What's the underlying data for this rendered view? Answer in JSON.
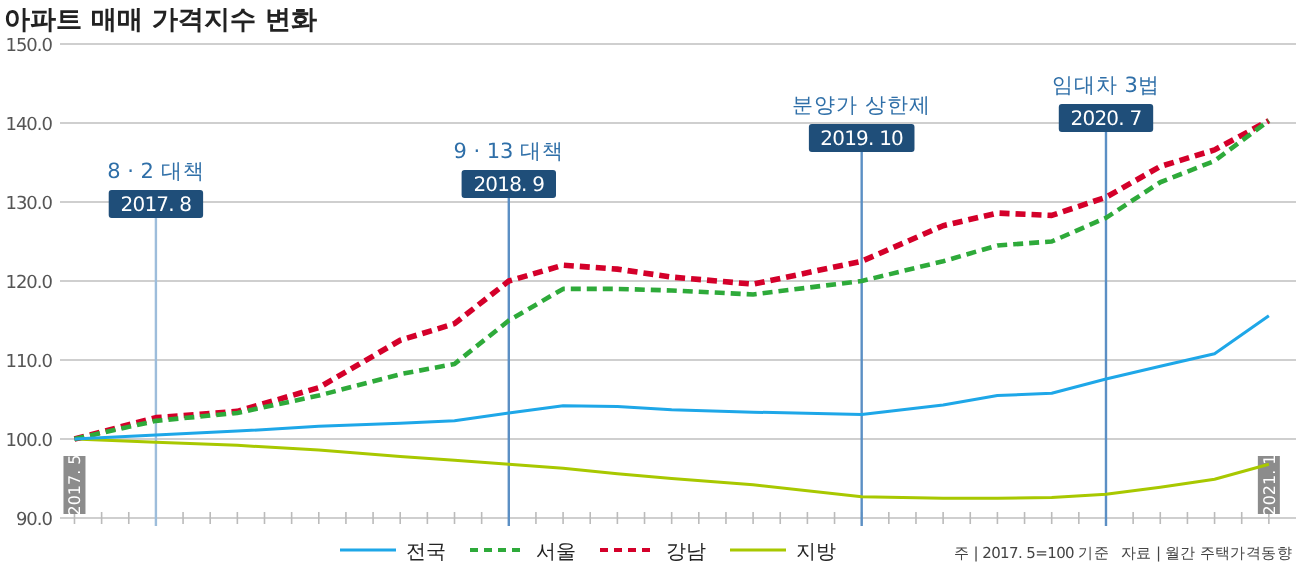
{
  "chart_data": {
    "type": "line",
    "title": "아파트 매매 가격지수 변화",
    "x": [
      "2017-05",
      "2017-08",
      "2017-11",
      "2018-02",
      "2018-05",
      "2018-07",
      "2018-09",
      "2018-11",
      "2019-01",
      "2019-03",
      "2019-06",
      "2019-10",
      "2020-01",
      "2020-03",
      "2020-05",
      "2020-07",
      "2020-09",
      "2020-11",
      "2021-01"
    ],
    "series": [
      {
        "name": "전국",
        "color": "#1ea7e8",
        "line_style": "solid",
        "values": [
          100,
          100.5,
          101.0,
          101.6,
          102.0,
          102.3,
          103.3,
          104.2,
          104.1,
          103.7,
          103.4,
          103.1,
          104.3,
          105.5,
          105.8,
          107.6,
          109.2,
          110.8,
          115.6
        ]
      },
      {
        "name": "서울",
        "color": "#2eaa3a",
        "line_style": "dashed",
        "values": [
          100,
          102.3,
          103.3,
          105.5,
          108.2,
          109.5,
          115,
          119,
          119,
          118.8,
          118.3,
          120,
          122.5,
          124.5,
          125,
          128,
          132.5,
          135.2,
          140.3
        ]
      },
      {
        "name": "강남",
        "color": "#d4002a",
        "line_style": "dashed",
        "values": [
          100,
          102.7,
          103.5,
          106.5,
          112.5,
          114.6,
          120,
          122,
          121.5,
          120.5,
          119.6,
          122.5,
          127,
          128.6,
          128.3,
          130.6,
          134.5,
          136.6,
          140.3
        ]
      },
      {
        "name": "지방",
        "color": "#a8c800",
        "line_style": "solid",
        "values": [
          100,
          99.6,
          99.2,
          98.6,
          97.8,
          97.3,
          96.8,
          96.3,
          95.6,
          95.0,
          94.2,
          92.7,
          92.5,
          92.5,
          92.6,
          93.0,
          93.9,
          94.9,
          96.8
        ]
      }
    ],
    "xlim": [
      "2017-04-15",
      "2021-02"
    ],
    "xticks": [
      {
        "value": "2017-05",
        "label": "2017. 5"
      },
      {
        "value": "2017-06",
        "label": null
      },
      {
        "value": "2017-07",
        "label": null
      },
      {
        "value": "2017-08",
        "label": null
      },
      {
        "value": "2017-09",
        "label": null
      },
      {
        "value": "2017-10",
        "label": null
      },
      {
        "value": "2017-11",
        "label": null
      },
      {
        "value": "2017-12",
        "label": null
      },
      {
        "value": "2018-01",
        "label": null
      },
      {
        "value": "2018-02",
        "label": null
      },
      {
        "value": "2018-03",
        "label": null
      },
      {
        "value": "2018-04",
        "label": null
      },
      {
        "value": "2018-05",
        "label": null
      },
      {
        "value": "2018-06",
        "label": null
      },
      {
        "value": "2018-07",
        "label": null
      },
      {
        "value": "2018-08",
        "label": null
      },
      {
        "value": "2018-09",
        "label": null
      },
      {
        "value": "2018-10",
        "label": null
      },
      {
        "value": "2018-11",
        "label": null
      },
      {
        "value": "2018-12",
        "label": null
      },
      {
        "value": "2019-01",
        "label": null
      },
      {
        "value": "2019-02",
        "label": null
      },
      {
        "value": "2019-03",
        "label": null
      },
      {
        "value": "2019-04",
        "label": null
      },
      {
        "value": "2019-05",
        "label": null
      },
      {
        "value": "2019-06",
        "label": null
      },
      {
        "value": "2019-07",
        "label": null
      },
      {
        "value": "2019-08",
        "label": null
      },
      {
        "value": "2019-09",
        "label": null
      },
      {
        "value": "2019-10",
        "label": null
      },
      {
        "value": "2019-11",
        "label": null
      },
      {
        "value": "2019-12",
        "label": null
      },
      {
        "value": "2020-01",
        "label": null
      },
      {
        "value": "2020-02",
        "label": null
      },
      {
        "value": "2020-03",
        "label": null
      },
      {
        "value": "2020-04",
        "label": null
      },
      {
        "value": "2020-05",
        "label": null
      },
      {
        "value": "2020-06",
        "label": null
      },
      {
        "value": "2020-07",
        "label": null
      },
      {
        "value": "2020-08",
        "label": null
      },
      {
        "value": "2020-09",
        "label": null
      },
      {
        "value": "2020-10",
        "label": null
      },
      {
        "value": "2020-11",
        "label": null
      },
      {
        "value": "2020-12",
        "label": null
      },
      {
        "value": "2021-01",
        "label": "2021. 1"
      }
    ],
    "ylim": [
      90,
      150
    ],
    "yticks": [
      {
        "value": 90,
        "label": "90.0"
      },
      {
        "value": 100,
        "label": "100.0"
      },
      {
        "value": 110,
        "label": "110.0"
      },
      {
        "value": 120,
        "label": "120.0"
      },
      {
        "value": 130,
        "label": "130.0"
      },
      {
        "value": 140,
        "label": "140.0"
      },
      {
        "value": 150,
        "label": "150.0"
      }
    ],
    "grid": "y",
    "legend": "bottom",
    "marker": "none",
    "ref_lines": [
      {
        "axis": "x",
        "value": "2017-08",
        "label": "2017. 8",
        "color": "#9dbddb"
      },
      {
        "axis": "x",
        "value": "2018-09",
        "label": "2018. 9",
        "color": "#5b8fc4"
      },
      {
        "axis": "x",
        "value": "2019-10",
        "label": "2019. 10",
        "color": "#5b8fc4"
      },
      {
        "axis": "x",
        "value": "2020-07",
        "label": "2020. 7",
        "color": "#5b8fc4"
      }
    ],
    "annotations": [
      "8 · 2 대책",
      "9 · 13 대책",
      "분양가 상한제",
      "임대차 3법",
      "주 | 2017. 5=100 기준",
      "자료 | 월간 주택가격동향"
    ]
  }
}
